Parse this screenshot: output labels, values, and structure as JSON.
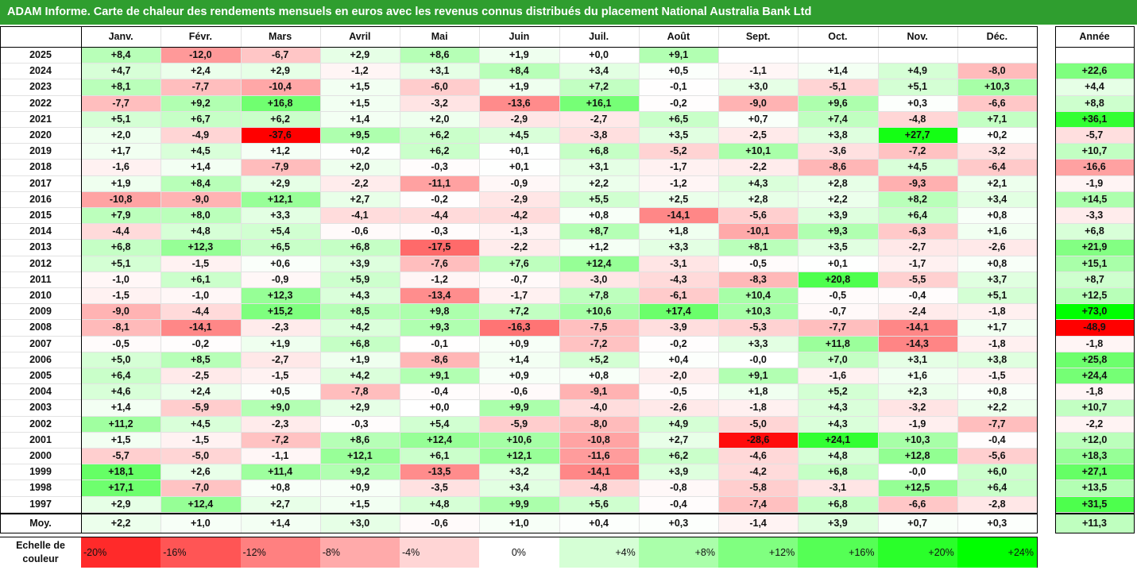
{
  "title": "ADAM Informe. Carte de chaleur des rendements mensuels en euros avec les revenus connus distribués du placement National Australia Bank Ltd",
  "chart_data": {
    "type": "heatmap",
    "title": "ADAM Informe. Carte de chaleur des rendements mensuels en euros avec les revenus connus distribués du placement National Australia Bank Ltd",
    "columns": [
      "Janv.",
      "Févr.",
      "Mars",
      "Avril",
      "Mai",
      "Juin",
      "Juil.",
      "Août",
      "Sept.",
      "Oct.",
      "Nov.",
      "Déc."
    ],
    "year_column_label": "Année",
    "average_row_label": "Moy.",
    "rows": [
      {
        "year": "2025",
        "values": [
          "+8,4",
          "-12,0",
          "-6,7",
          "+2,9",
          "+8,6",
          "+1,9",
          "+0,0",
          "+9,1",
          "",
          "",
          "",
          ""
        ],
        "annual": ""
      },
      {
        "year": "2024",
        "values": [
          "+4,7",
          "+2,4",
          "+2,9",
          "-1,2",
          "+3,1",
          "+8,4",
          "+3,4",
          "+0,5",
          "-1,1",
          "+1,4",
          "+4,9",
          "-8,0"
        ],
        "annual": "+22,6"
      },
      {
        "year": "2023",
        "values": [
          "+8,1",
          "-7,7",
          "-10,4",
          "+1,5",
          "-6,0",
          "+1,9",
          "+7,2",
          "-0,1",
          "+3,0",
          "-5,1",
          "+5,1",
          "+10,3"
        ],
        "annual": "+4,4"
      },
      {
        "year": "2022",
        "values": [
          "-7,7",
          "+9,2",
          "+16,8",
          "+1,5",
          "-3,2",
          "-13,6",
          "+16,1",
          "-0,2",
          "-9,0",
          "+9,6",
          "+0,3",
          "-6,6"
        ],
        "annual": "+8,8"
      },
      {
        "year": "2021",
        "values": [
          "+5,1",
          "+6,7",
          "+6,2",
          "+1,4",
          "+2,0",
          "-2,9",
          "-2,7",
          "+6,5",
          "+0,7",
          "+7,4",
          "-4,8",
          "+7,1"
        ],
        "annual": "+36,1"
      },
      {
        "year": "2020",
        "values": [
          "+2,0",
          "-4,9",
          "-37,6",
          "+9,5",
          "+6,2",
          "+4,5",
          "-3,8",
          "+3,5",
          "-2,5",
          "+3,8",
          "+27,7",
          "+0,2"
        ],
        "annual": "-5,7"
      },
      {
        "year": "2019",
        "values": [
          "+1,7",
          "+4,5",
          "+1,2",
          "+0,2",
          "+6,2",
          "+0,1",
          "+6,8",
          "-5,2",
          "+10,1",
          "-3,6",
          "-7,2",
          "-3,2"
        ],
        "annual": "+10,7"
      },
      {
        "year": "2018",
        "values": [
          "-1,6",
          "+1,4",
          "-7,9",
          "+2,0",
          "-0,3",
          "+0,1",
          "+3,1",
          "-1,7",
          "-2,2",
          "-8,6",
          "+4,5",
          "-6,4"
        ],
        "annual": "-16,6"
      },
      {
        "year": "2017",
        "values": [
          "+1,9",
          "+8,4",
          "+2,9",
          "-2,2",
          "-11,1",
          "-0,9",
          "+2,2",
          "-1,2",
          "+4,3",
          "+2,8",
          "-9,3",
          "+2,1"
        ],
        "annual": "-1,9"
      },
      {
        "year": "2016",
        "values": [
          "-10,8",
          "-9,0",
          "+12,1",
          "+2,7",
          "-0,2",
          "-2,9",
          "+5,5",
          "+2,5",
          "+2,8",
          "+2,2",
          "+8,2",
          "+3,4"
        ],
        "annual": "+14,5"
      },
      {
        "year": "2015",
        "values": [
          "+7,9",
          "+8,0",
          "+3,3",
          "-4,1",
          "-4,4",
          "-4,2",
          "+0,8",
          "-14,1",
          "-5,6",
          "+3,9",
          "+6,4",
          "+0,8"
        ],
        "annual": "-3,3"
      },
      {
        "year": "2014",
        "values": [
          "-4,4",
          "+4,8",
          "+5,4",
          "-0,6",
          "-0,3",
          "-1,3",
          "+8,7",
          "+1,8",
          "-10,1",
          "+9,3",
          "-6,3",
          "+1,6"
        ],
        "annual": "+6,8"
      },
      {
        "year": "2013",
        "values": [
          "+6,8",
          "+12,3",
          "+6,5",
          "+6,8",
          "-17,5",
          "-2,2",
          "+1,2",
          "+3,3",
          "+8,1",
          "+3,5",
          "-2,7",
          "-2,6"
        ],
        "annual": "+21,9"
      },
      {
        "year": "2012",
        "values": [
          "+5,1",
          "-1,5",
          "+0,6",
          "+3,9",
          "-7,6",
          "+7,6",
          "+12,4",
          "-3,1",
          "-0,5",
          "+0,1",
          "-1,7",
          "+0,8"
        ],
        "annual": "+15,1"
      },
      {
        "year": "2011",
        "values": [
          "-1,0",
          "+6,1",
          "-0,9",
          "+5,9",
          "-1,2",
          "-0,7",
          "-3,0",
          "-4,3",
          "-8,3",
          "+20,8",
          "-5,5",
          "+3,7"
        ],
        "annual": "+8,7"
      },
      {
        "year": "2010",
        "values": [
          "-1,5",
          "-1,0",
          "+12,3",
          "+4,3",
          "-13,4",
          "-1,7",
          "+7,8",
          "-6,1",
          "+10,4",
          "-0,5",
          "-0,4",
          "+5,1"
        ],
        "annual": "+12,5"
      },
      {
        "year": "2009",
        "values": [
          "-9,0",
          "-4,4",
          "+15,2",
          "+8,5",
          "+9,8",
          "+7,2",
          "+10,6",
          "+17,4",
          "+10,3",
          "-0,7",
          "-2,4",
          "-1,8"
        ],
        "annual": "+73,0"
      },
      {
        "year": "2008",
        "values": [
          "-8,1",
          "-14,1",
          "-2,3",
          "+4,2",
          "+9,3",
          "-16,3",
          "-7,5",
          "-3,9",
          "-5,3",
          "-7,7",
          "-14,1",
          "+1,7"
        ],
        "annual": "-48,9"
      },
      {
        "year": "2007",
        "values": [
          "-0,5",
          "-0,2",
          "+1,9",
          "+6,8",
          "-0,1",
          "+0,9",
          "-7,2",
          "-0,2",
          "+3,3",
          "+11,8",
          "-14,3",
          "-1,8"
        ],
        "annual": "-1,8"
      },
      {
        "year": "2006",
        "values": [
          "+5,0",
          "+8,5",
          "-2,7",
          "+1,9",
          "-8,6",
          "+1,4",
          "+5,2",
          "+0,4",
          "-0,0",
          "+7,0",
          "+3,1",
          "+3,8"
        ],
        "annual": "+25,8"
      },
      {
        "year": "2005",
        "values": [
          "+6,4",
          "-2,5",
          "-1,5",
          "+4,2",
          "+9,1",
          "+0,9",
          "+0,8",
          "-2,0",
          "+9,1",
          "-1,6",
          "+1,6",
          "-1,5"
        ],
        "annual": "+24,4"
      },
      {
        "year": "2004",
        "values": [
          "+4,6",
          "+2,4",
          "+0,5",
          "-7,8",
          "-0,4",
          "-0,6",
          "-9,1",
          "-0,5",
          "+1,8",
          "+5,2",
          "+2,3",
          "+0,8"
        ],
        "annual": "-1,8"
      },
      {
        "year": "2003",
        "values": [
          "+1,4",
          "-5,9",
          "+9,0",
          "+2,9",
          "+0,0",
          "+9,9",
          "-4,0",
          "-2,6",
          "-1,8",
          "+4,3",
          "-3,2",
          "+2,2"
        ],
        "annual": "+10,7"
      },
      {
        "year": "2002",
        "values": [
          "+11,2",
          "+4,5",
          "-2,3",
          "-0,3",
          "+5,4",
          "-5,9",
          "-8,0",
          "+4,9",
          "-5,0",
          "+4,3",
          "-1,9",
          "-7,7"
        ],
        "annual": "-2,2"
      },
      {
        "year": "2001",
        "values": [
          "+1,5",
          "-1,5",
          "-7,2",
          "+8,6",
          "+12,4",
          "+10,6",
          "-10,8",
          "+2,7",
          "-28,6",
          "+24,1",
          "+10,3",
          "-0,4"
        ],
        "annual": "+12,0"
      },
      {
        "year": "2000",
        "values": [
          "-5,7",
          "-5,0",
          "-1,1",
          "+12,1",
          "+6,1",
          "+12,1",
          "-11,6",
          "+6,2",
          "-4,6",
          "+4,8",
          "+12,8",
          "-5,6"
        ],
        "annual": "+18,3"
      },
      {
        "year": "1999",
        "values": [
          "+18,1",
          "+2,6",
          "+11,4",
          "+9,2",
          "-13,5",
          "+3,2",
          "-14,1",
          "+3,9",
          "-4,2",
          "+6,8",
          "-0,0",
          "+6,0"
        ],
        "annual": "+27,1"
      },
      {
        "year": "1998",
        "values": [
          "+17,1",
          "-7,0",
          "+0,8",
          "+0,9",
          "-3,5",
          "+3,4",
          "-4,8",
          "-0,8",
          "-5,8",
          "-3,1",
          "+12,5",
          "+6,4"
        ],
        "annual": "+13,5"
      },
      {
        "year": "1997",
        "values": [
          "+2,9",
          "+12,4",
          "+2,7",
          "+1,5",
          "+4,8",
          "+9,9",
          "+5,6",
          "-0,4",
          "-7,4",
          "+6,8",
          "-6,6",
          "-2,8"
        ],
        "annual": "+31,5"
      }
    ],
    "averages": {
      "values": [
        "+2,2",
        "+1,0",
        "+1,4",
        "+3,0",
        "-0,6",
        "+1,0",
        "+0,4",
        "+0,3",
        "-1,4",
        "+3,9",
        "+0,7",
        "+0,3"
      ],
      "annual": "+11,3"
    },
    "color_scale": {
      "label_line1": "Echelle de",
      "label_line2": "couleur",
      "stops": [
        "-20%",
        "-16%",
        "-12%",
        "-8%",
        "-4%",
        "0%",
        "+4%",
        "+8%",
        "+12%",
        "+16%",
        "+20%",
        "+24%"
      ],
      "stop_values": [
        -20,
        -16,
        -12,
        -8,
        -4,
        0,
        4,
        8,
        12,
        16,
        20,
        24
      ],
      "negative_color": "#ff0000",
      "positive_color": "#00ff00",
      "neutral_color": "#ffffff"
    }
  }
}
